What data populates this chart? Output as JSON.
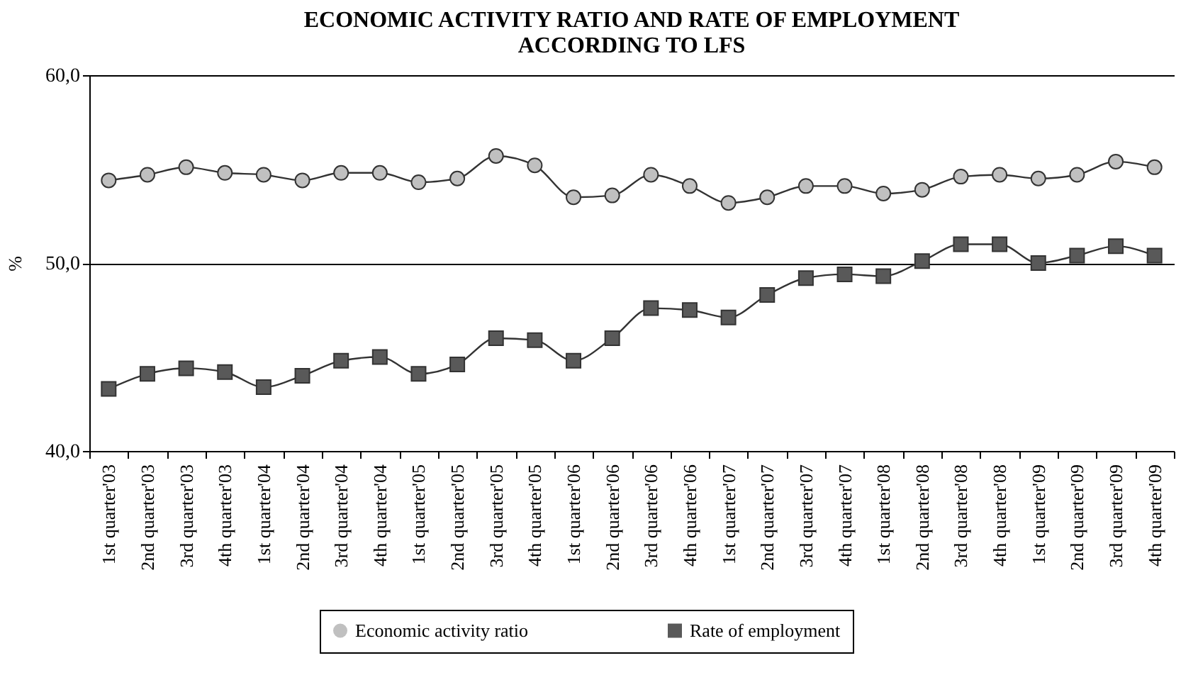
{
  "chart_data": {
    "type": "line",
    "title": "ECONOMIC ACTIVITY RATIO AND RATE OF EMPLOYMENT\nACCORDING TO LFS",
    "ylabel": "%",
    "categories": [
      "1st quarter'03",
      "2nd quarter'03",
      "3rd quarter'03",
      "4th quarter'03",
      "1st quarter'04",
      "2nd quarter'04",
      "3rd quarter'04",
      "4th quarter'04",
      "1st quarter'05",
      "2nd quarter'05",
      "3rd quarter'05",
      "4th quarter'05",
      "1st quarter'06",
      "2nd quarter'06",
      "3rd quarter'06",
      "4th quarter'06",
      "1st quarter'07",
      "2nd quarter'07",
      "3rd quarter'07",
      "4th quarter'07",
      "1st quarter'08",
      "2nd quarter'08",
      "3rd quarter'08",
      "4th quarter'08",
      "1st quarter'09",
      "2nd quarter'09",
      "3rd quarter'09",
      "4th quarter'09"
    ],
    "series": [
      {
        "name": "Economic activity ratio",
        "color": "#c0c0c0",
        "marker": "circle",
        "values": [
          54.4,
          54.7,
          55.1,
          54.8,
          54.7,
          54.4,
          54.8,
          54.8,
          54.3,
          54.5,
          55.7,
          55.2,
          53.5,
          53.6,
          54.7,
          54.1,
          53.2,
          53.5,
          54.1,
          54.1,
          53.7,
          53.9,
          54.6,
          54.7,
          54.5,
          54.7,
          55.4,
          55.1
        ]
      },
      {
        "name": "Rate of employment",
        "color": "#595959",
        "marker": "square",
        "values": [
          43.3,
          44.1,
          44.4,
          44.2,
          43.4,
          44.0,
          44.8,
          45.0,
          44.1,
          44.6,
          46.0,
          45.9,
          44.8,
          46.0,
          47.6,
          47.5,
          47.1,
          48.3,
          49.2,
          49.4,
          49.3,
          50.1,
          51.0,
          51.0,
          50.0,
          50.4,
          50.9,
          50.4
        ]
      }
    ],
    "ylim": [
      40,
      60
    ],
    "yticks": [
      {
        "value": 40,
        "label": "40,0"
      },
      {
        "value": 50,
        "label": "50,0"
      },
      {
        "value": 60,
        "label": "60,0"
      }
    ],
    "grid": "y",
    "legend": "bottom",
    "line_style": "solid"
  }
}
